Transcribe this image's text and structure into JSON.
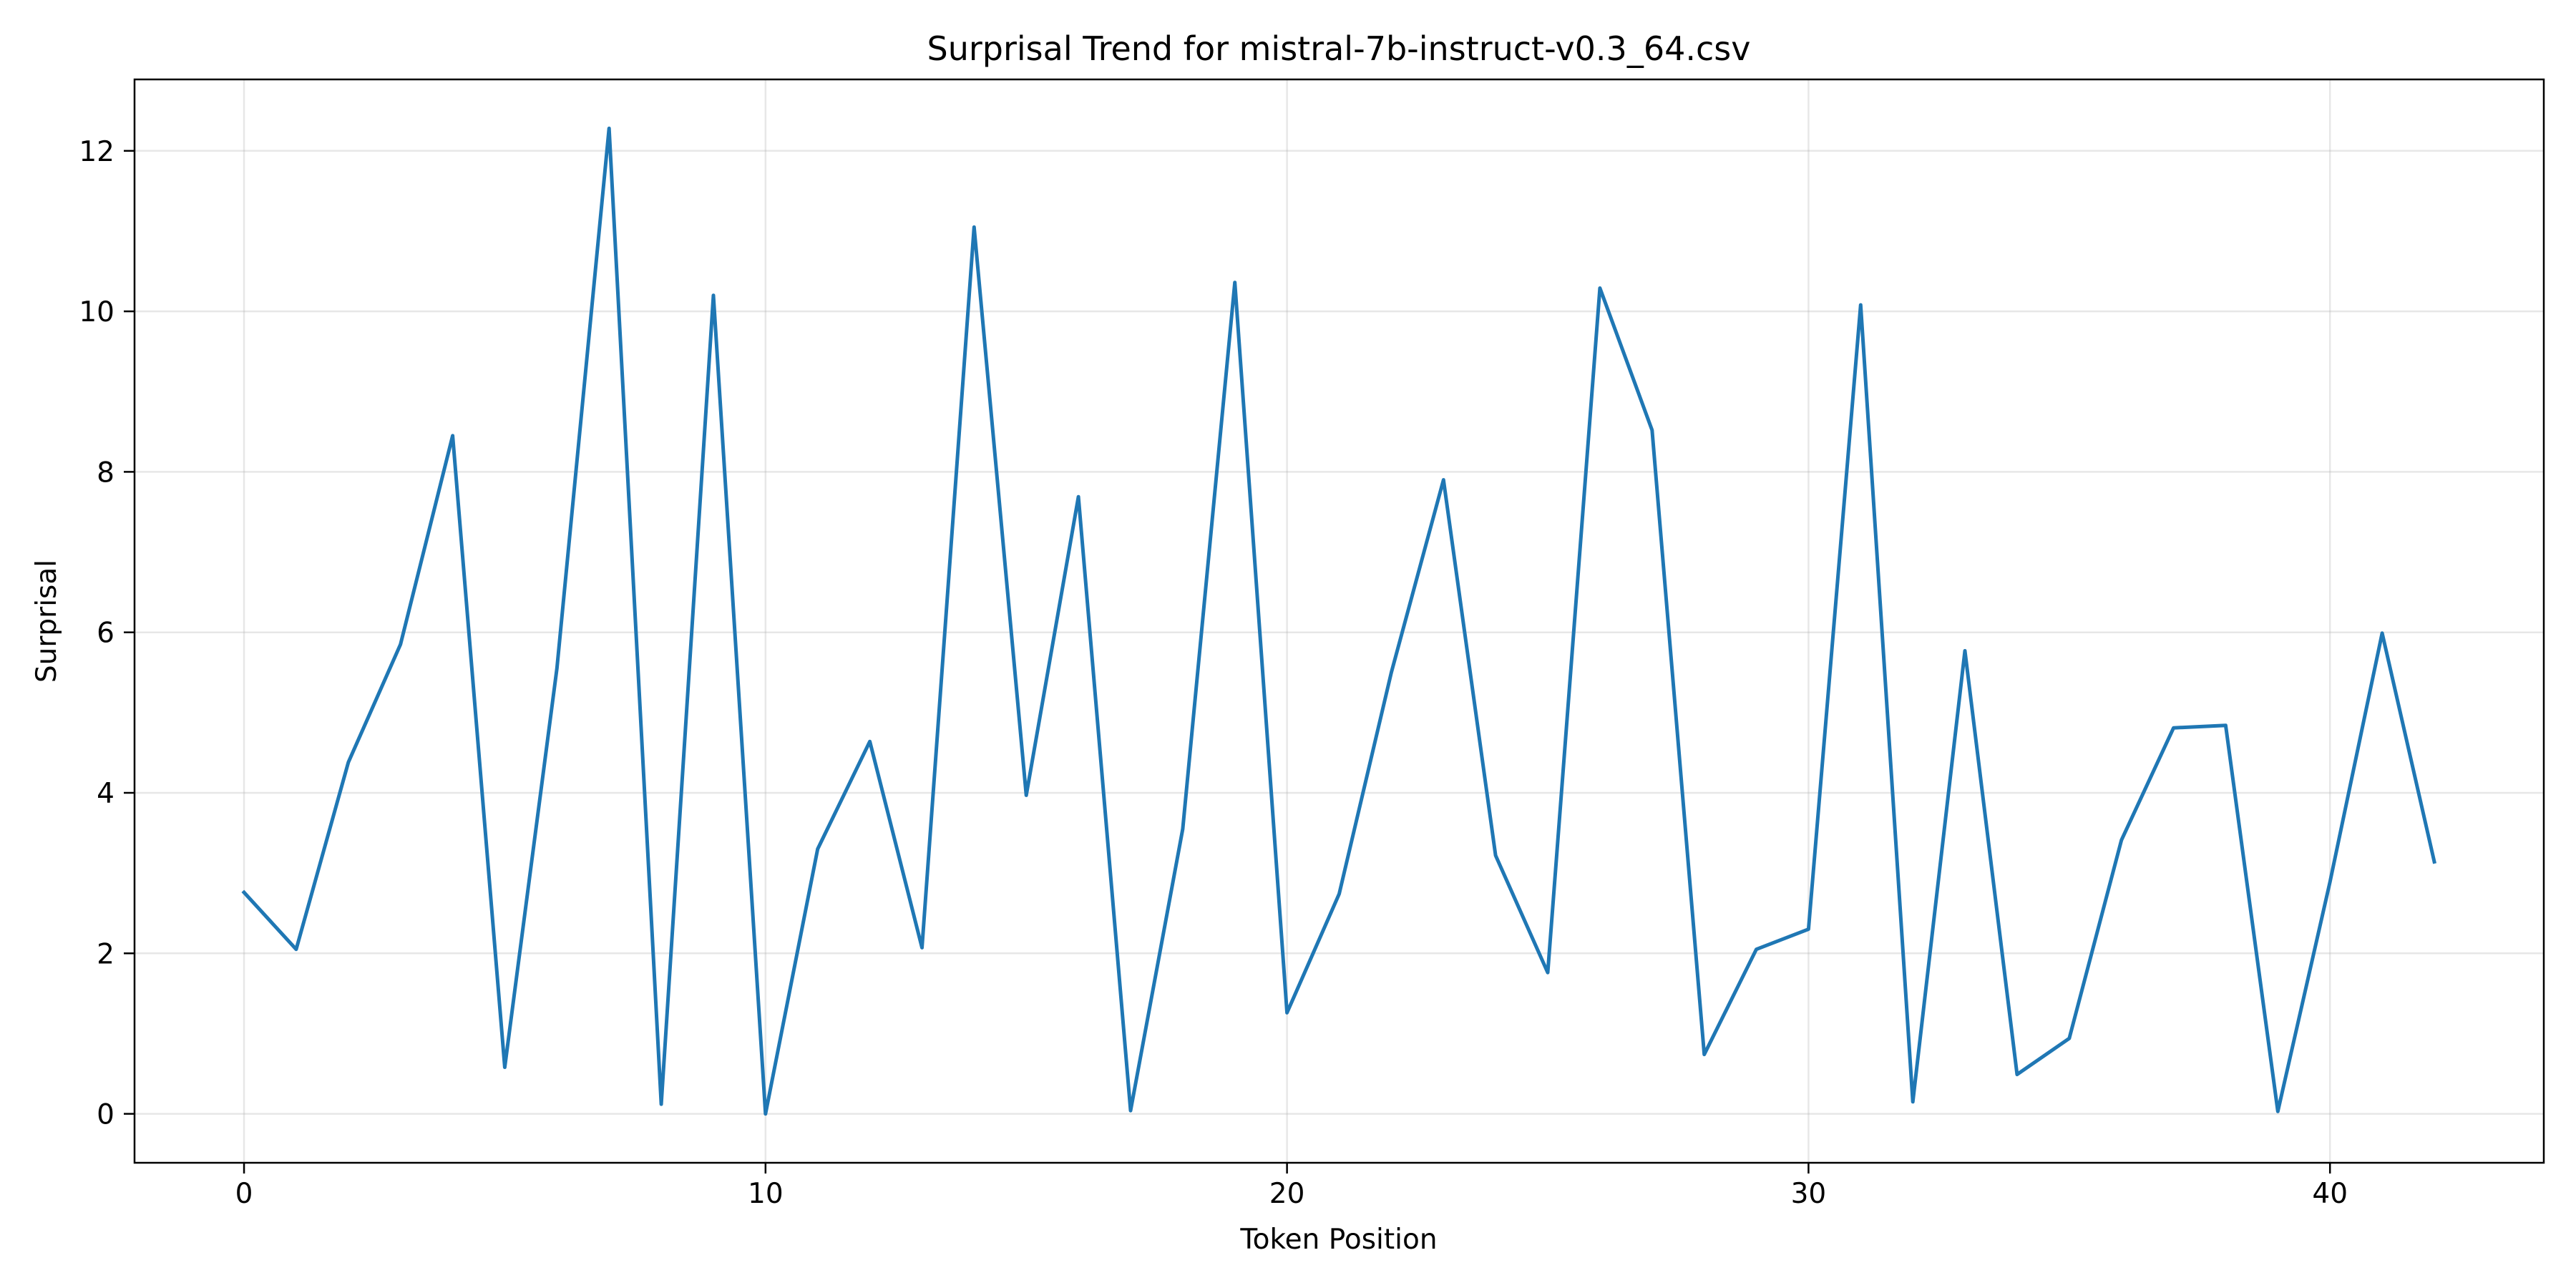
{
  "chart_data": {
    "type": "line",
    "title": "Surprisal Trend for mistral-7b-instruct-v0.3_64.csv",
    "xlabel": "Token Position",
    "ylabel": "Surprisal",
    "xlim": [
      -2.1,
      44.1
    ],
    "ylim": [
      -0.61,
      12.89
    ],
    "xticks": [
      0,
      10,
      20,
      30,
      40
    ],
    "yticks": [
      0,
      2,
      4,
      6,
      8,
      10,
      12
    ],
    "grid": true,
    "series": [
      {
        "name": "Surprisal",
        "color": "#1f77b4",
        "x": [
          0,
          1,
          2,
          3,
          4,
          5,
          6,
          7,
          8,
          9,
          10,
          11,
          12,
          13,
          14,
          15,
          16,
          17,
          18,
          19,
          20,
          21,
          22,
          23,
          24,
          25,
          26,
          27,
          28,
          29,
          30,
          31,
          32,
          33,
          34,
          35,
          36,
          37,
          38,
          39,
          40,
          41,
          42
        ],
        "values": [
          2.76,
          2.05,
          4.38,
          5.85,
          8.45,
          0.58,
          5.55,
          12.28,
          0.12,
          10.2,
          0.0,
          3.3,
          4.64,
          2.07,
          11.05,
          3.97,
          7.69,
          0.04,
          3.55,
          10.36,
          1.26,
          2.74,
          5.5,
          7.9,
          3.22,
          1.76,
          10.29,
          8.52,
          0.74,
          2.05,
          2.3,
          10.08,
          0.15,
          5.77,
          0.49,
          0.94,
          3.41,
          4.81,
          4.84,
          0.03,
          2.89,
          5.99,
          3.14
        ]
      }
    ]
  }
}
